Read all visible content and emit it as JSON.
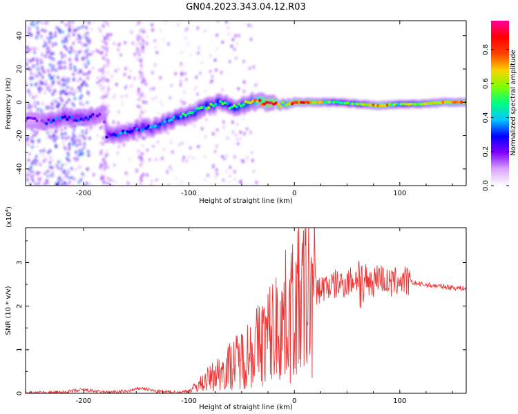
{
  "title": "GN04.2023.343.04.12.R03",
  "chart_data": [
    {
      "type": "heatmap",
      "xlabel": "Height of straight line (km)",
      "ylabel": "Frequency (Hz)",
      "xlim": [
        -255,
        163
      ],
      "ylim": [
        -50,
        49
      ],
      "x_ticks": [
        -200,
        -100,
        0,
        100
      ],
      "y_ticks": [
        -40,
        -20,
        0,
        20,
        40
      ],
      "colorbar": {
        "label": "Normalized spectral amplitude",
        "range": [
          0.0,
          0.97
        ],
        "ticks": [
          "0.0",
          "0.2",
          "0.4",
          "0.6",
          "0.8"
        ],
        "colormap": [
          "#ffffff",
          "#d9a6ff",
          "#8000ff",
          "#0000ff",
          "#00c8ff",
          "#00ff80",
          "#80ff00",
          "#ffd000",
          "#ff4000",
          "#ff0000",
          "#ff00a0"
        ]
      },
      "ridge": {
        "x": [
          -250,
          -235,
          -220,
          -205,
          -190,
          -182,
          -178,
          -165,
          -150,
          -135,
          -120,
          -110,
          -100,
          -90,
          -80,
          -70,
          -60,
          -50,
          -40,
          -30,
          -20,
          -15,
          -10,
          0,
          20,
          40,
          60,
          80,
          100,
          120,
          140,
          163
        ],
        "frequency": [
          -10,
          -12,
          -9,
          -10,
          -8,
          -7,
          -20,
          -19,
          -16,
          -15,
          -11,
          -9,
          -7,
          -4,
          -2,
          0,
          -3,
          -2,
          1,
          0,
          0,
          -2,
          -1,
          0,
          0,
          0,
          -1,
          -2,
          -1,
          -1,
          0,
          0
        ],
        "amplitude": [
          0.15,
          0.25,
          0.3,
          0.3,
          0.25,
          0.2,
          0.3,
          0.3,
          0.35,
          0.35,
          0.4,
          0.4,
          0.45,
          0.5,
          0.5,
          0.45,
          0.5,
          0.55,
          0.6,
          0.9,
          0.95,
          0.7,
          0.6,
          0.9,
          0.7,
          0.5,
          0.5,
          0.8,
          0.5,
          0.6,
          0.7,
          0.8
        ]
      }
    },
    {
      "type": "line",
      "xlabel": "Height of straight line (km)",
      "ylabel": "SNR (10 * v/v)",
      "scale_label": "(x10",
      "scale_exponent": "4",
      "xlim": [
        -255,
        163
      ],
      "ylim": [
        0,
        3.8
      ],
      "x_ticks": [
        -200,
        -100,
        0,
        100
      ],
      "y_ticks": [
        0,
        1,
        2,
        3
      ],
      "series": [
        {
          "color": "#ee3333",
          "x": [
            -255,
            -220,
            -200,
            -180,
            -160,
            -145,
            -130,
            -110,
            -100,
            -90,
            -80,
            -70,
            -60,
            -50,
            -40,
            -30,
            -20,
            -10,
            0,
            10,
            20,
            30,
            40,
            50,
            55,
            60,
            63,
            65,
            67,
            70,
            75,
            80,
            90,
            100,
            110,
            120,
            140,
            163
          ],
          "values": [
            0.0,
            0.02,
            0.08,
            0.02,
            0.04,
            0.12,
            0.04,
            0.02,
            0.05,
            0.2,
            0.35,
            0.5,
            0.65,
            0.8,
            1.0,
            1.2,
            1.45,
            1.7,
            1.95,
            2.2,
            2.35,
            2.45,
            2.5,
            2.55,
            2.6,
            2.65,
            3.1,
            2.1,
            2.7,
            2.6,
            2.55,
            2.7,
            2.5,
            2.6,
            2.55,
            2.5,
            2.45,
            2.4
          ]
        }
      ]
    }
  ]
}
